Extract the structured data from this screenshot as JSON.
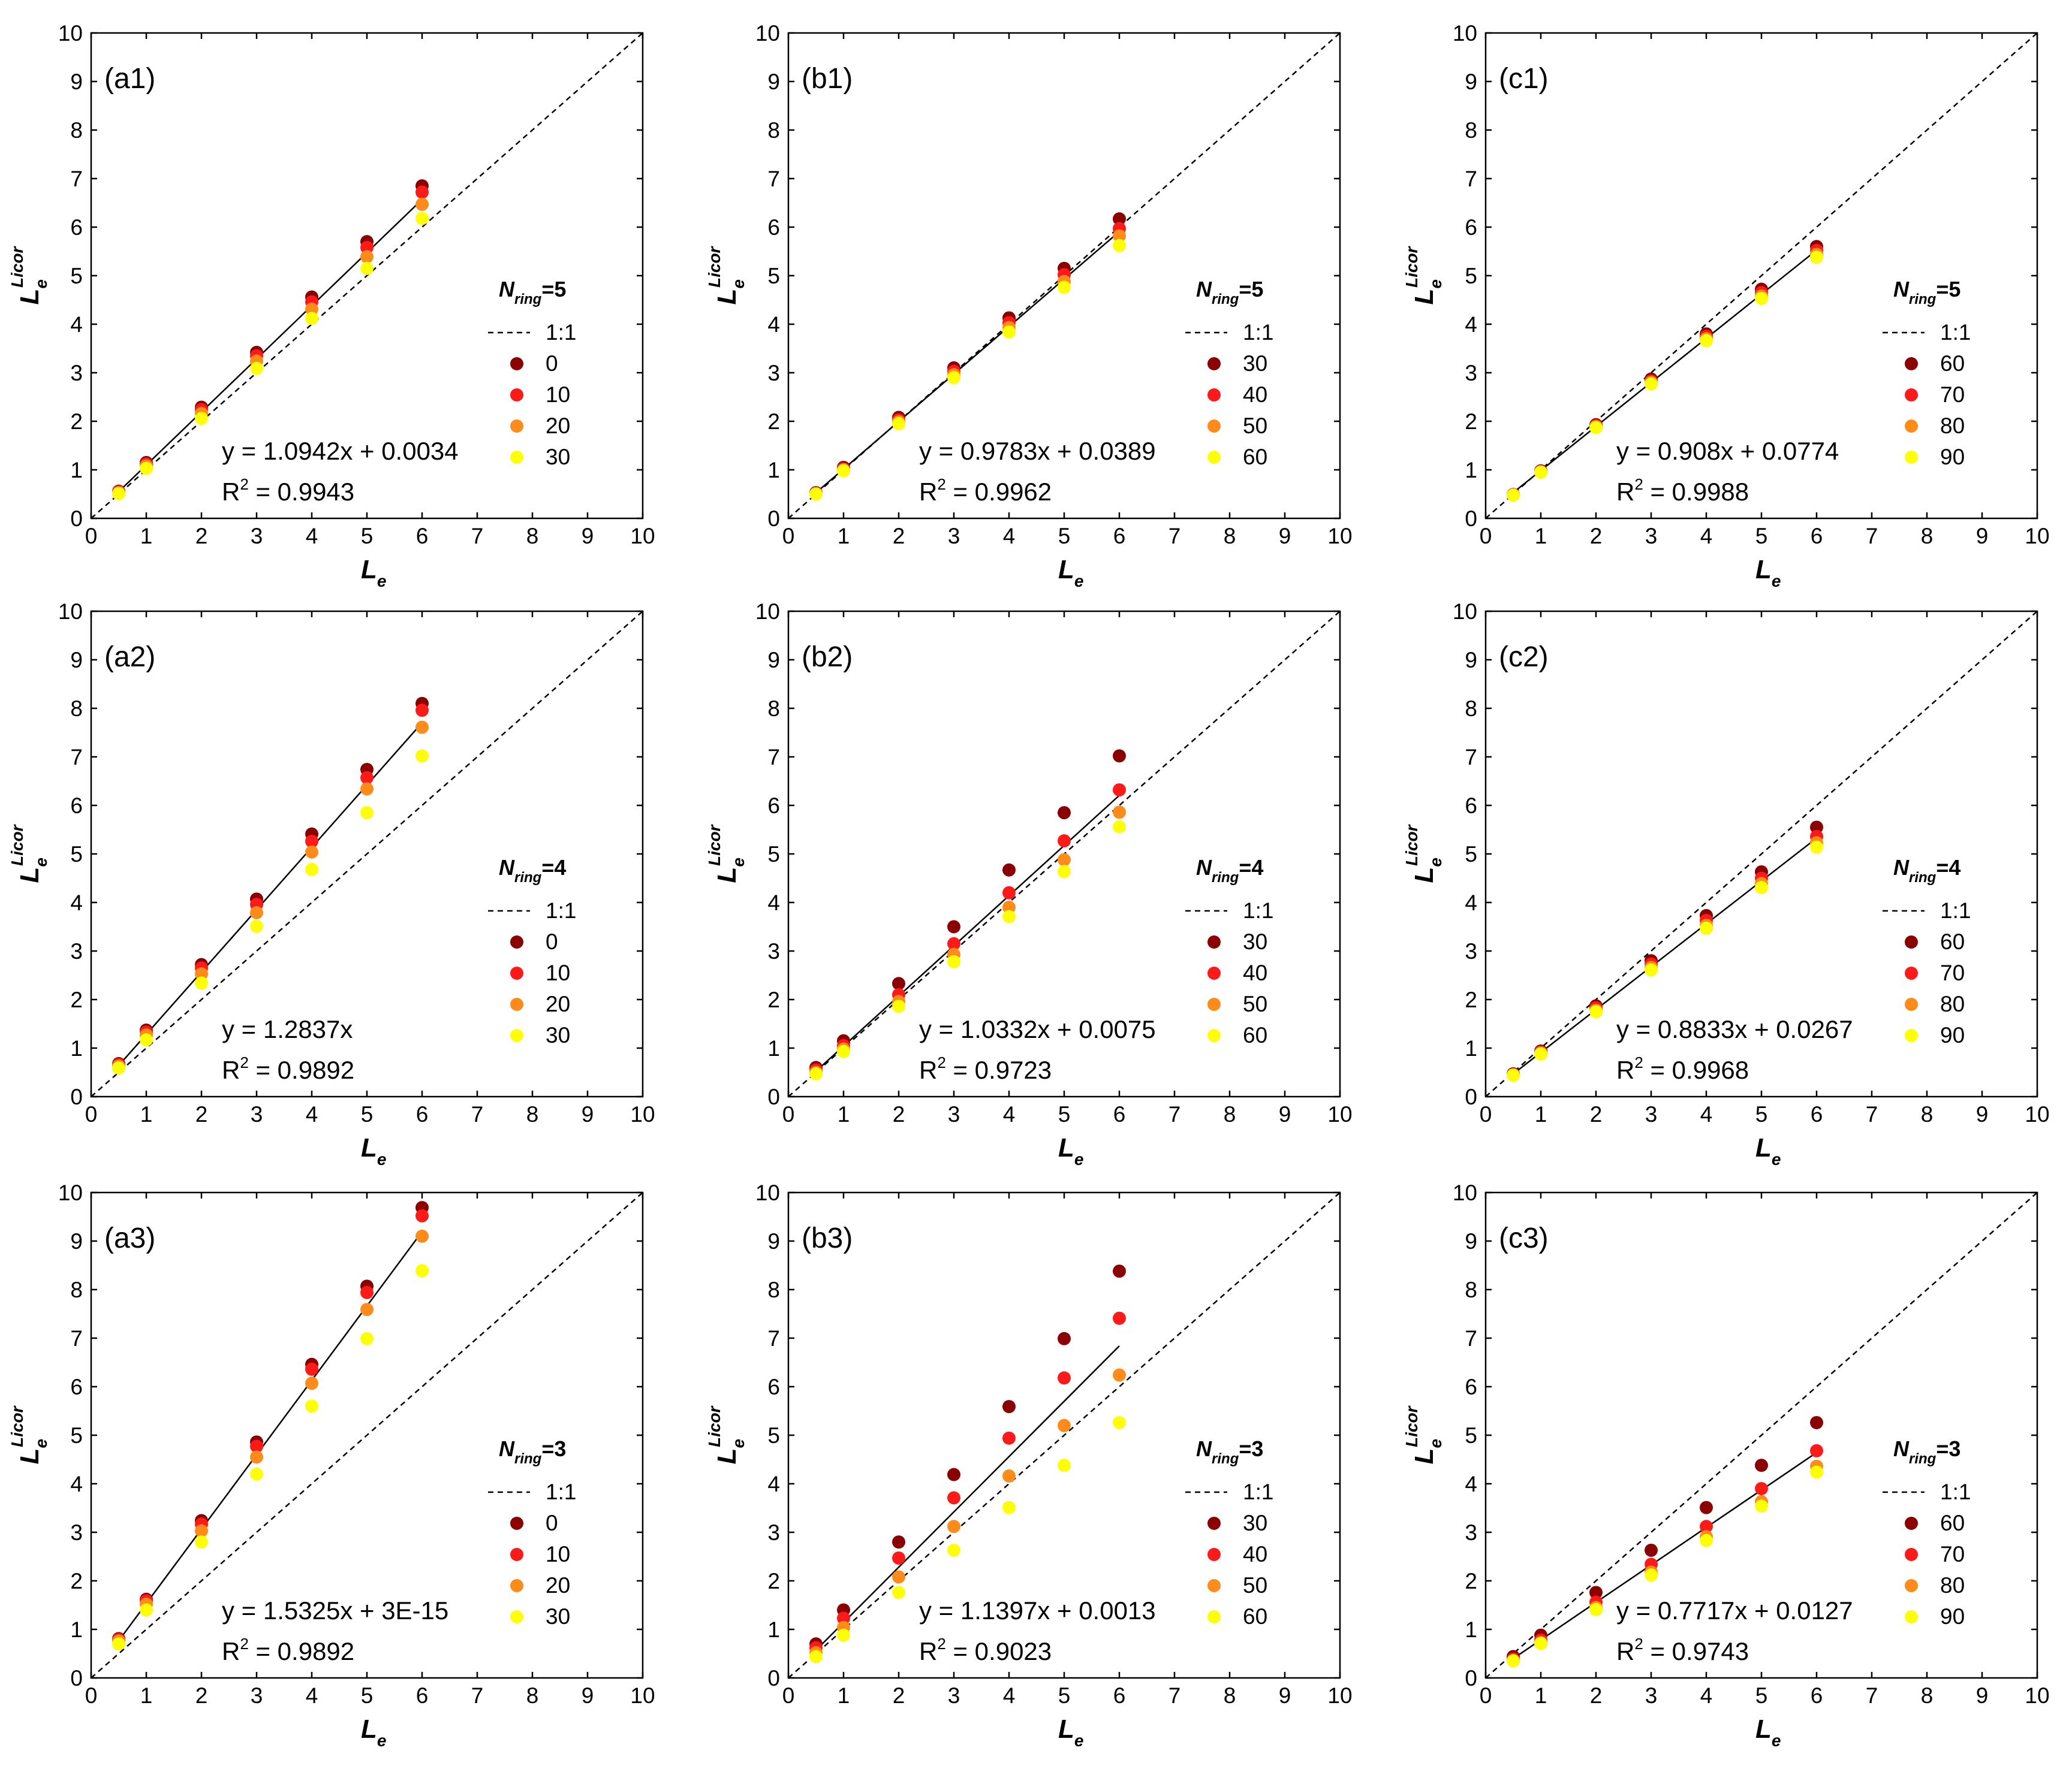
{
  "chart_data": [
    {
      "panel": "(a1)",
      "type": "scatter",
      "xlabel": "L",
      "xlabel_sub": "e",
      "ylabel": "L",
      "ylabel_sub": "e",
      "ylabel_sup": "Licor",
      "xlim": [
        0,
        10
      ],
      "ylim": [
        0,
        10
      ],
      "ticks": [
        "0",
        "1",
        "2",
        "3",
        "4",
        "5",
        "6",
        "7",
        "8",
        "9",
        "10"
      ],
      "legend_title": "N",
      "legend_title_sub": "ring",
      "legend_title_rest": "=5",
      "legend_line_label": "1:1",
      "x": [
        0.5,
        1,
        2,
        3,
        4,
        5,
        6
      ],
      "series": [
        {
          "name": "0",
          "color": "#8b0000",
          "values": [
            0.56,
            1.15,
            2.29,
            3.42,
            4.56,
            5.7,
            6.85
          ]
        },
        {
          "name": "10",
          "color": "#ff1a1a",
          "values": [
            0.55,
            1.12,
            2.24,
            3.35,
            4.46,
            5.58,
            6.72
          ]
        },
        {
          "name": "20",
          "color": "#ff8c1a",
          "values": [
            0.53,
            1.08,
            2.16,
            3.24,
            4.31,
            5.39,
            6.47
          ]
        },
        {
          "name": "30",
          "color": "#ffff00",
          "values": [
            0.51,
            1.03,
            2.06,
            3.09,
            4.12,
            5.15,
            6.18
          ]
        }
      ],
      "fit": {
        "slope": 1.0942,
        "intercept": 0.0034,
        "equation": "y = 1.0942x + 0.0034",
        "r2_label": "R",
        "r2_value": " = 0.9943"
      }
    },
    {
      "panel": "(b1)",
      "type": "scatter",
      "xlabel": "L",
      "xlabel_sub": "e",
      "ylabel": "L",
      "ylabel_sub": "e",
      "ylabel_sup": "Licor",
      "xlim": [
        0,
        10
      ],
      "ylim": [
        0,
        10
      ],
      "ticks": [
        "0",
        "1",
        "2",
        "3",
        "4",
        "5",
        "6",
        "7",
        "8",
        "9",
        "10"
      ],
      "legend_title": "N",
      "legend_title_sub": "ring",
      "legend_title_rest": "=5",
      "legend_line_label": "1:1",
      "x": [
        0.5,
        1,
        2,
        3,
        4,
        5,
        6
      ],
      "series": [
        {
          "name": "30",
          "color": "#8b0000",
          "values": [
            0.53,
            1.05,
            2.08,
            3.1,
            4.13,
            5.15,
            6.17
          ]
        },
        {
          "name": "40",
          "color": "#ff1a1a",
          "values": [
            0.52,
            1.02,
            2.03,
            3.03,
            4.03,
            5.02,
            5.97
          ]
        },
        {
          "name": "50",
          "color": "#ff8c1a",
          "values": [
            0.51,
            1.0,
            1.99,
            2.96,
            3.93,
            4.88,
            5.82
          ]
        },
        {
          "name": "60",
          "color": "#ffff00",
          "values": [
            0.5,
            0.98,
            1.95,
            2.9,
            3.84,
            4.76,
            5.62
          ]
        }
      ],
      "fit": {
        "slope": 0.9783,
        "intercept": 0.0389,
        "equation": "y = 0.9783x + 0.0389",
        "r2_label": "R",
        "r2_value": " = 0.9962"
      }
    },
    {
      "panel": "(c1)",
      "type": "scatter",
      "xlabel": "L",
      "xlabel_sub": "e",
      "ylabel": "L",
      "ylabel_sub": "e",
      "ylabel_sup": "Licor",
      "xlim": [
        0,
        10
      ],
      "ylim": [
        0,
        10
      ],
      "ticks": [
        "0",
        "1",
        "2",
        "3",
        "4",
        "5",
        "6",
        "7",
        "8",
        "9",
        "10"
      ],
      "legend_title": "N",
      "legend_title_sub": "ring",
      "legend_title_rest": "=5",
      "legend_line_label": "1:1",
      "x": [
        0.5,
        1,
        2,
        3,
        4,
        5,
        6
      ],
      "series": [
        {
          "name": "60",
          "color": "#8b0000",
          "values": [
            0.49,
            0.98,
            1.93,
            2.87,
            3.8,
            4.72,
            5.6
          ]
        },
        {
          "name": "70",
          "color": "#ff1a1a",
          "values": [
            0.49,
            0.97,
            1.91,
            2.83,
            3.75,
            4.65,
            5.52
          ]
        },
        {
          "name": "80",
          "color": "#ff8c1a",
          "values": [
            0.48,
            0.96,
            1.89,
            2.8,
            3.7,
            4.58,
            5.44
          ]
        },
        {
          "name": "90",
          "color": "#ffff00",
          "values": [
            0.48,
            0.95,
            1.87,
            2.77,
            3.66,
            4.53,
            5.38
          ]
        }
      ],
      "fit": {
        "slope": 0.908,
        "intercept": 0.0774,
        "equation": "y = 0.908x + 0.0774",
        "r2_label": "R",
        "r2_value": " = 0.9988"
      }
    },
    {
      "panel": "(a2)",
      "type": "scatter",
      "xlabel": "L",
      "xlabel_sub": "e",
      "ylabel": "L",
      "ylabel_sub": "e",
      "ylabel_sup": "Licor",
      "xlim": [
        0,
        10
      ],
      "ylim": [
        0,
        10
      ],
      "ticks": [
        "0",
        "1",
        "2",
        "3",
        "4",
        "5",
        "6",
        "7",
        "8",
        "9",
        "10"
      ],
      "legend_title": "N",
      "legend_title_sub": "ring",
      "legend_title_rest": "=4",
      "legend_line_label": "1:1",
      "x": [
        0.5,
        1,
        2,
        3,
        4,
        5,
        6
      ],
      "series": [
        {
          "name": "0",
          "color": "#8b0000",
          "values": [
            0.68,
            1.37,
            2.72,
            4.07,
            5.41,
            6.74,
            8.1
          ]
        },
        {
          "name": "10",
          "color": "#ff1a1a",
          "values": [
            0.66,
            1.33,
            2.65,
            3.96,
            5.26,
            6.57,
            7.96
          ]
        },
        {
          "name": "20",
          "color": "#ff8c1a",
          "values": [
            0.63,
            1.27,
            2.53,
            3.79,
            5.04,
            6.34,
            7.61
          ]
        },
        {
          "name": "30",
          "color": "#ffff00",
          "values": [
            0.59,
            1.17,
            2.34,
            3.51,
            4.68,
            5.85,
            7.02
          ]
        }
      ],
      "fit": {
        "slope": 1.2837,
        "intercept": 0,
        "equation": "y = 1.2837x",
        "r2_label": "R",
        "r2_value": " = 0.9892"
      }
    },
    {
      "panel": "(b2)",
      "type": "scatter",
      "xlabel": "L",
      "xlabel_sub": "e",
      "ylabel": "L",
      "ylabel_sub": "e",
      "ylabel_sup": "Licor",
      "xlim": [
        0,
        10
      ],
      "ylim": [
        0,
        10
      ],
      "ticks": [
        "0",
        "1",
        "2",
        "3",
        "4",
        "5",
        "6",
        "7",
        "8",
        "9",
        "10"
      ],
      "legend_title": "N",
      "legend_title_sub": "ring",
      "legend_title_rest": "=4",
      "legend_line_label": "1:1",
      "x": [
        0.5,
        1,
        2,
        3,
        4,
        5,
        6
      ],
      "series": [
        {
          "name": "30",
          "color": "#8b0000",
          "values": [
            0.6,
            1.15,
            2.33,
            3.5,
            4.67,
            5.85,
            7.02
          ]
        },
        {
          "name": "40",
          "color": "#ff1a1a",
          "values": [
            0.55,
            1.05,
            2.1,
            3.15,
            4.2,
            5.27,
            6.32
          ]
        },
        {
          "name": "50",
          "color": "#ff8c1a",
          "values": [
            0.5,
            0.98,
            1.96,
            2.93,
            3.9,
            4.88,
            5.86
          ]
        },
        {
          "name": "60",
          "color": "#ffff00",
          "values": [
            0.47,
            0.93,
            1.86,
            2.78,
            3.71,
            4.64,
            5.56
          ]
        }
      ],
      "fit": {
        "slope": 1.0332,
        "intercept": 0.0075,
        "equation": "y = 1.0332x + 0.0075",
        "r2_label": "R",
        "r2_value": " = 0.9723"
      }
    },
    {
      "panel": "(c2)",
      "type": "scatter",
      "xlabel": "L",
      "xlabel_sub": "e",
      "ylabel": "L",
      "ylabel_sub": "e",
      "ylabel_sup": "Licor",
      "xlim": [
        0,
        10
      ],
      "ylim": [
        0,
        10
      ],
      "ticks": [
        "0",
        "1",
        "2",
        "3",
        "4",
        "5",
        "6",
        "7",
        "8",
        "9",
        "10"
      ],
      "legend_title": "N",
      "legend_title_sub": "ring",
      "legend_title_rest": "=4",
      "legend_line_label": "1:1",
      "x": [
        0.5,
        1,
        2,
        3,
        4,
        5,
        6
      ],
      "series": [
        {
          "name": "60",
          "color": "#8b0000",
          "values": [
            0.47,
            0.94,
            1.87,
            2.8,
            3.73,
            4.63,
            5.55
          ]
        },
        {
          "name": "70",
          "color": "#ff1a1a",
          "values": [
            0.46,
            0.92,
            1.83,
            2.73,
            3.63,
            4.5,
            5.36
          ]
        },
        {
          "name": "80",
          "color": "#ff8c1a",
          "values": [
            0.45,
            0.9,
            1.78,
            2.66,
            3.53,
            4.39,
            5.23
          ]
        },
        {
          "name": "90",
          "color": "#ffff00",
          "values": [
            0.44,
            0.88,
            1.75,
            2.61,
            3.47,
            4.31,
            5.14
          ]
        }
      ],
      "fit": {
        "slope": 0.8833,
        "intercept": 0.0267,
        "equation": "y = 0.8833x + 0.0267",
        "r2_label": "R",
        "r2_value": " = 0.9968"
      }
    },
    {
      "panel": "(a3)",
      "type": "scatter",
      "xlabel": "L",
      "xlabel_sub": "e",
      "ylabel": "L",
      "ylabel_sub": "e",
      "ylabel_sup": "Licor",
      "xlim": [
        0,
        10
      ],
      "ylim": [
        0,
        10
      ],
      "ticks": [
        "0",
        "1",
        "2",
        "3",
        "4",
        "5",
        "6",
        "7",
        "8",
        "9",
        "10"
      ],
      "legend_title": "N",
      "legend_title_sub": "ring",
      "legend_title_rest": "=3",
      "legend_line_label": "1:1",
      "x": [
        0.5,
        1,
        2,
        3,
        4,
        5,
        6
      ],
      "series": [
        {
          "name": "0",
          "color": "#8b0000",
          "values": [
            0.81,
            1.62,
            3.24,
            4.86,
            6.46,
            8.07,
            9.69
          ]
        },
        {
          "name": "10",
          "color": "#ff1a1a",
          "values": [
            0.79,
            1.59,
            3.17,
            4.77,
            6.36,
            7.94,
            9.52
          ]
        },
        {
          "name": "20",
          "color": "#ff8c1a",
          "values": [
            0.76,
            1.52,
            3.03,
            4.55,
            6.07,
            7.59,
            9.1
          ]
        },
        {
          "name": "30",
          "color": "#ffff00",
          "values": [
            0.7,
            1.4,
            2.8,
            4.2,
            5.6,
            6.99,
            8.39
          ]
        }
      ],
      "fit": {
        "slope": 1.5325,
        "intercept": 0,
        "equation": "y = 1.5325x + 3E-15",
        "r2_label": "R",
        "r2_value": " = 0.9892"
      }
    },
    {
      "panel": "(b3)",
      "type": "scatter",
      "xlabel": "L",
      "xlabel_sub": "e",
      "ylabel": "L",
      "ylabel_sub": "e",
      "ylabel_sup": "Licor",
      "xlim": [
        0,
        10
      ],
      "ylim": [
        0,
        10
      ],
      "ticks": [
        "0",
        "1",
        "2",
        "3",
        "4",
        "5",
        "6",
        "7",
        "8",
        "9",
        "10"
      ],
      "legend_title": "N",
      "legend_title_sub": "ring",
      "legend_title_rest": "=3",
      "legend_line_label": "1:1",
      "x": [
        0.5,
        1,
        2,
        3,
        4,
        5,
        6
      ],
      "series": [
        {
          "name": "30",
          "color": "#8b0000",
          "values": [
            0.7,
            1.4,
            2.8,
            4.19,
            5.59,
            6.99,
            8.38
          ]
        },
        {
          "name": "40",
          "color": "#ff1a1a",
          "values": [
            0.62,
            1.23,
            2.47,
            3.71,
            4.94,
            6.18,
            7.41
          ]
        },
        {
          "name": "50",
          "color": "#ff8c1a",
          "values": [
            0.52,
            1.04,
            2.08,
            3.12,
            4.16,
            5.2,
            6.24
          ]
        },
        {
          "name": "60",
          "color": "#ffff00",
          "values": [
            0.44,
            0.88,
            1.76,
            2.63,
            3.51,
            4.38,
            5.26
          ]
        }
      ],
      "fit": {
        "slope": 1.1397,
        "intercept": 0.0013,
        "equation": "y = 1.1397x + 0.0013",
        "r2_label": "R",
        "r2_value": " = 0.9023"
      }
    },
    {
      "panel": "(c3)",
      "type": "scatter",
      "xlabel": "L",
      "xlabel_sub": "e",
      "ylabel": "L",
      "ylabel_sub": "e",
      "ylabel_sup": "Licor",
      "xlim": [
        0,
        10
      ],
      "ylim": [
        0,
        10
      ],
      "ticks": [
        "0",
        "1",
        "2",
        "3",
        "4",
        "5",
        "6",
        "7",
        "8",
        "9",
        "10"
      ],
      "legend_title": "N",
      "legend_title_sub": "ring",
      "legend_title_rest": "=3",
      "legend_line_label": "1:1",
      "x": [
        0.5,
        1,
        2,
        3,
        4,
        5,
        6
      ],
      "series": [
        {
          "name": "60",
          "color": "#8b0000",
          "values": [
            0.44,
            0.88,
            1.76,
            2.63,
            3.51,
            4.38,
            5.26
          ]
        },
        {
          "name": "70",
          "color": "#ff1a1a",
          "values": [
            0.39,
            0.78,
            1.56,
            2.34,
            3.12,
            3.9,
            4.68
          ]
        },
        {
          "name": "80",
          "color": "#ff8c1a",
          "values": [
            0.36,
            0.73,
            1.45,
            2.18,
            2.91,
            3.63,
            4.36
          ]
        },
        {
          "name": "90",
          "color": "#ffff00",
          "values": [
            0.35,
            0.71,
            1.41,
            2.12,
            2.83,
            3.54,
            4.24
          ]
        }
      ],
      "fit": {
        "slope": 0.7717,
        "intercept": 0.0127,
        "equation": "y = 0.7717x + 0.0127",
        "r2_label": "R",
        "r2_value": " = 0.9743"
      }
    }
  ]
}
